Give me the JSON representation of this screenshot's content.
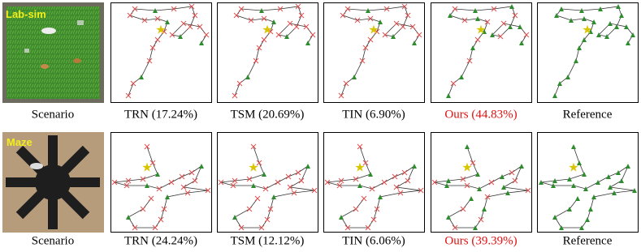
{
  "rows": [
    {
      "scene_label": "Lab-sim",
      "captions": [
        "Scenario",
        "TRN (17.24%)",
        "TSM (20.69%)",
        "TIN (6.90%)",
        "Ours (44.83%)",
        "Reference"
      ]
    },
    {
      "scene_label": "Maze",
      "captions": [
        "Scenario",
        "TRN (24.24%)",
        "TSM (12.12%)",
        "TIN (6.06%)",
        "Ours (39.39%)",
        "Reference"
      ]
    }
  ]
}
